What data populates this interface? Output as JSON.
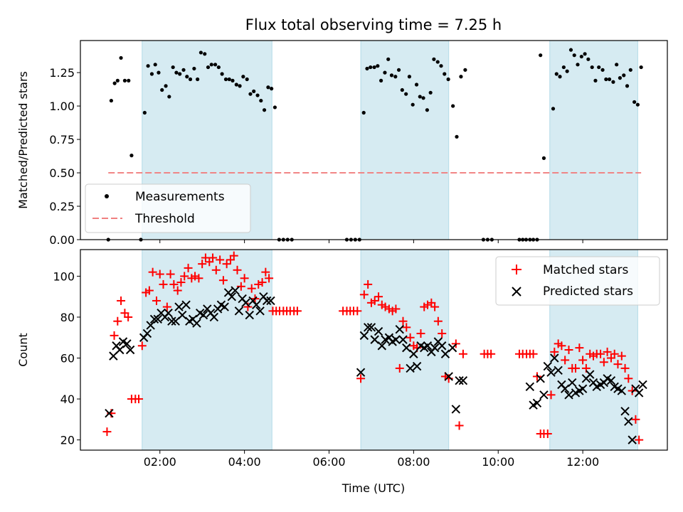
{
  "chart_data": [
    {
      "type": "scatter",
      "title": "Flux total observing time = 7.25 h",
      "xlabel": "",
      "ylabel": "Matched/Predicted stars",
      "xlim": [
        0.12,
        14.0
      ],
      "ylim": [
        0.0,
        1.49
      ],
      "yticks": [
        0.0,
        0.25,
        0.5,
        0.75,
        1.0,
        1.25
      ],
      "ytick_labels": [
        "0.00",
        "0.25",
        "0.50",
        "0.75",
        "1.00",
        "1.25"
      ],
      "legend_position": "lower-left",
      "series": [
        {
          "name": "Measurements",
          "color": "#000000",
          "marker": "dot",
          "x": [
            0.78,
            0.85,
            0.93,
            1.0,
            1.08,
            1.17,
            1.26,
            1.33,
            1.55,
            1.64,
            1.72,
            1.81,
            1.89,
            1.97,
            2.05,
            2.14,
            2.22,
            2.31,
            2.39,
            2.47,
            2.56,
            2.64,
            2.72,
            2.81,
            2.89,
            2.97,
            3.06,
            3.14,
            3.22,
            3.31,
            3.39,
            3.47,
            3.56,
            3.64,
            3.72,
            3.81,
            3.89,
            3.97,
            4.06,
            4.14,
            4.22,
            4.31,
            4.39,
            4.47,
            4.56,
            4.64,
            4.72,
            4.82,
            4.92,
            5.02,
            5.12,
            6.42,
            6.52,
            6.62,
            6.72,
            6.82,
            6.9,
            6.98,
            7.07,
            7.15,
            7.23,
            7.32,
            7.4,
            7.48,
            7.57,
            7.65,
            7.73,
            7.82,
            7.9,
            7.98,
            8.07,
            8.15,
            8.23,
            8.32,
            8.4,
            8.48,
            8.57,
            8.65,
            8.73,
            8.82,
            8.93,
            9.02,
            9.12,
            9.22,
            9.65,
            9.75,
            9.85,
            10.5,
            10.58,
            10.66,
            10.75,
            10.83,
            10.92,
            11.0,
            11.08,
            11.3,
            11.38,
            11.46,
            11.55,
            11.63,
            11.72,
            11.8,
            11.88,
            11.97,
            12.05,
            12.13,
            12.22,
            12.3,
            12.38,
            12.47,
            12.55,
            12.63,
            12.72,
            12.8,
            12.88,
            12.97,
            13.05,
            13.13,
            13.22,
            13.3,
            13.38
          ],
          "y": [
            0.0,
            1.04,
            1.17,
            1.19,
            1.36,
            1.19,
            1.19,
            0.63,
            0.0,
            0.95,
            1.3,
            1.24,
            1.31,
            1.25,
            1.12,
            1.15,
            1.07,
            1.29,
            1.25,
            1.24,
            1.27,
            1.22,
            1.2,
            1.28,
            1.2,
            1.4,
            1.39,
            1.29,
            1.31,
            1.31,
            1.29,
            1.24,
            1.2,
            1.2,
            1.19,
            1.16,
            1.15,
            1.22,
            1.2,
            1.09,
            1.11,
            1.08,
            1.04,
            0.97,
            1.14,
            1.13,
            0.99,
            0.0,
            0.0,
            0.0,
            0.0,
            0.0,
            0.0,
            0.0,
            0.0,
            0.95,
            1.28,
            1.29,
            1.29,
            1.3,
            1.19,
            1.25,
            1.35,
            1.23,
            1.22,
            1.27,
            1.12,
            1.09,
            1.22,
            1.01,
            1.16,
            1.07,
            1.06,
            0.97,
            1.1,
            1.35,
            1.33,
            1.3,
            1.24,
            1.2,
            1.0,
            0.77,
            1.22,
            1.27,
            0.0,
            0.0,
            0.0,
            0.0,
            0.0,
            0.0,
            0.0,
            0.0,
            0.0,
            1.38,
            0.61,
            0.98,
            1.24,
            1.22,
            1.29,
            1.26,
            1.42,
            1.38,
            1.31,
            1.37,
            1.39,
            1.35,
            1.29,
            1.19,
            1.29,
            1.27,
            1.2,
            1.2,
            1.18,
            1.31,
            1.21,
            1.23,
            1.15,
            1.27,
            1.03,
            1.01,
            1.29
          ],
          "labels": []
        },
        {
          "name": "Threshold",
          "color": "#f08080",
          "marker": "dashed-line",
          "x": [
            0.78,
            13.38
          ],
          "y": [
            0.5,
            0.5
          ]
        }
      ]
    },
    {
      "type": "scatter",
      "title": "",
      "xlabel": "Time (UTC)",
      "ylabel": "Count",
      "xlim": [
        0.12,
        14.0
      ],
      "ylim": [
        15,
        113
      ],
      "yticks": [
        20,
        40,
        60,
        80,
        100
      ],
      "xticks": [
        2,
        4,
        6,
        8,
        10,
        12
      ],
      "xtick_labels": [
        "02:00",
        "04:00",
        "06:00",
        "08:00",
        "10:00",
        "12:00"
      ],
      "legend_position": "top-right",
      "series": [
        {
          "name": "Matched stars",
          "color": "#ff0000",
          "marker": "plus",
          "x": [
            0.75,
            0.85,
            0.92,
            1.0,
            1.08,
            1.17,
            1.25,
            1.33,
            1.42,
            1.5,
            1.58,
            1.67,
            1.75,
            1.83,
            1.92,
            2.0,
            2.08,
            2.17,
            2.25,
            2.33,
            2.42,
            2.5,
            2.58,
            2.67,
            2.75,
            2.83,
            2.92,
            3.0,
            3.08,
            3.17,
            3.25,
            3.33,
            3.42,
            3.5,
            3.58,
            3.67,
            3.75,
            3.83,
            3.92,
            4.0,
            4.08,
            4.17,
            4.25,
            4.33,
            4.42,
            4.5,
            4.58,
            4.67,
            4.75,
            4.83,
            4.92,
            5.0,
            5.08,
            5.17,
            5.25,
            6.33,
            6.42,
            6.5,
            6.58,
            6.67,
            6.75,
            6.83,
            6.92,
            7.0,
            7.08,
            7.17,
            7.25,
            7.33,
            7.42,
            7.5,
            7.58,
            7.67,
            7.75,
            7.83,
            7.92,
            8.0,
            8.08,
            8.17,
            8.25,
            8.33,
            8.42,
            8.5,
            8.58,
            8.67,
            8.75,
            8.83,
            9.0,
            9.08,
            9.17,
            9.67,
            9.75,
            9.83,
            10.5,
            10.58,
            10.67,
            10.75,
            10.83,
            10.92,
            11.0,
            11.08,
            11.17,
            11.25,
            11.33,
            11.42,
            11.5,
            11.58,
            11.67,
            11.75,
            11.83,
            11.92,
            12.0,
            12.08,
            12.17,
            12.25,
            12.33,
            12.42,
            12.5,
            12.58,
            12.67,
            12.75,
            12.83,
            12.92,
            13.0,
            13.08,
            13.17,
            13.25,
            13.33
          ],
          "y": [
            24,
            33,
            71,
            78,
            88,
            82,
            80,
            40,
            40,
            40,
            66,
            92,
            93,
            102,
            88,
            101,
            96,
            85,
            101,
            96,
            93,
            97,
            100,
            104,
            99,
            100,
            99,
            106,
            109,
            107,
            109,
            103,
            108,
            98,
            106,
            108,
            110,
            103,
            95,
            99,
            85,
            94,
            89,
            96,
            97,
            102,
            99,
            83,
            83,
            83,
            83,
            83,
            83,
            83,
            83,
            83,
            83,
            83,
            83,
            83,
            50,
            91,
            96,
            87,
            88,
            90,
            86,
            85,
            84,
            83,
            84,
            55,
            78,
            75,
            70,
            66,
            65,
            72,
            85,
            86,
            87,
            85,
            78,
            72,
            51,
            50,
            67,
            27,
            62,
            62,
            62,
            62,
            62,
            62,
            62,
            62,
            62,
            51,
            23,
            23,
            23,
            42,
            63,
            67,
            66,
            59,
            64,
            55,
            55,
            65,
            59,
            55,
            62,
            61,
            62,
            62,
            58,
            63,
            60,
            62,
            57,
            61,
            55,
            50,
            44,
            30,
            20
          ],
          "labels": []
        },
        {
          "name": "Predicted stars",
          "color": "#000000",
          "marker": "x",
          "x": [
            0.8,
            0.9,
            0.97,
            1.05,
            1.13,
            1.22,
            1.3,
            1.62,
            1.7,
            1.78,
            1.87,
            1.95,
            2.03,
            2.12,
            2.2,
            2.28,
            2.37,
            2.45,
            2.53,
            2.62,
            2.7,
            2.78,
            2.87,
            2.95,
            3.03,
            3.12,
            3.2,
            3.28,
            3.37,
            3.45,
            3.53,
            3.62,
            3.7,
            3.78,
            3.87,
            3.95,
            4.03,
            4.12,
            4.2,
            4.28,
            4.37,
            4.45,
            4.53,
            4.62,
            6.75,
            6.83,
            6.92,
            7.0,
            7.08,
            7.17,
            7.25,
            7.33,
            7.42,
            7.5,
            7.58,
            7.67,
            7.75,
            7.83,
            7.92,
            8.0,
            8.08,
            8.17,
            8.25,
            8.33,
            8.42,
            8.5,
            8.58,
            8.67,
            8.75,
            8.83,
            8.92,
            9.0,
            9.08,
            9.17,
            10.75,
            10.83,
            10.92,
            11.0,
            11.08,
            11.17,
            11.25,
            11.33,
            11.42,
            11.5,
            11.58,
            11.67,
            11.75,
            11.83,
            11.92,
            12.0,
            12.08,
            12.17,
            12.25,
            12.33,
            12.42,
            12.5,
            12.58,
            12.67,
            12.75,
            12.83,
            12.92,
            13.0,
            13.08,
            13.17,
            13.25,
            13.33,
            13.42
          ],
          "y": [
            33,
            61,
            66,
            64,
            68,
            67,
            64,
            70,
            72,
            76,
            79,
            79,
            82,
            80,
            82,
            78,
            78,
            85,
            81,
            86,
            78,
            79,
            77,
            82,
            81,
            84,
            82,
            80,
            84,
            86,
            85,
            92,
            90,
            93,
            83,
            89,
            87,
            81,
            88,
            86,
            83,
            90,
            88,
            88,
            53,
            71,
            75,
            75,
            69,
            73,
            66,
            69,
            70,
            68,
            69,
            74,
            69,
            65,
            55,
            62,
            56,
            66,
            65,
            66,
            63,
            65,
            68,
            66,
            62,
            51,
            65,
            35,
            49,
            49,
            46,
            37,
            38,
            50,
            42,
            56,
            53,
            60,
            54,
            47,
            45,
            42,
            48,
            43,
            44,
            45,
            50,
            52,
            48,
            46,
            47,
            48,
            50,
            49,
            46,
            45,
            44,
            34,
            29,
            20,
            45,
            43,
            47
          ],
          "labels": []
        }
      ]
    }
  ]
}
